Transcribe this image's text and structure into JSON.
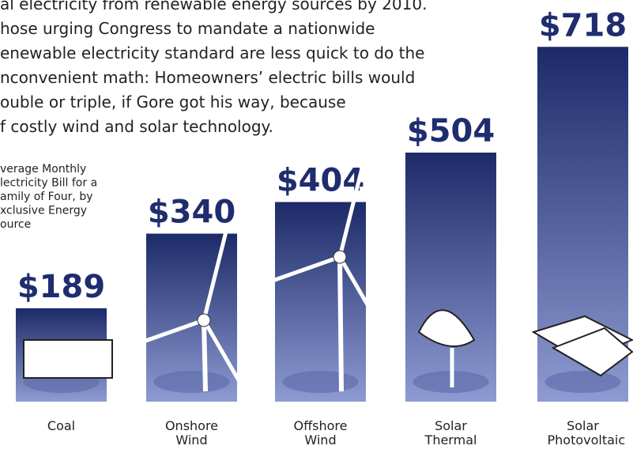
{
  "chart_data": {
    "type": "bar",
    "text_lines": [
      "al electricity from renewable energy sources by 2010.",
      "hose urging Congress to mandate a nationwide",
      "enewable electricity standard are less quick to do the",
      "nconvenient math: Homeowners’ electric bills would",
      "ouble or triple, if Gore got his way,  because",
      "f costly wind and solar technology."
    ],
    "annotation_lines": [
      "verage Monthly",
      "lectricity Bill for a",
      "amily of Four, by",
      "xclusive Energy",
      "ource"
    ],
    "categories": [
      "Coal",
      "Onshore Wind",
      "Offshore Wind",
      "Solar Thermal",
      "Solar Photovoltaic"
    ],
    "values": [
      189,
      340,
      404,
      504,
      718
    ],
    "value_labels": [
      "$189",
      "$340",
      "$404",
      "$504",
      "$718"
    ],
    "color": "#1f2d6e"
  }
}
